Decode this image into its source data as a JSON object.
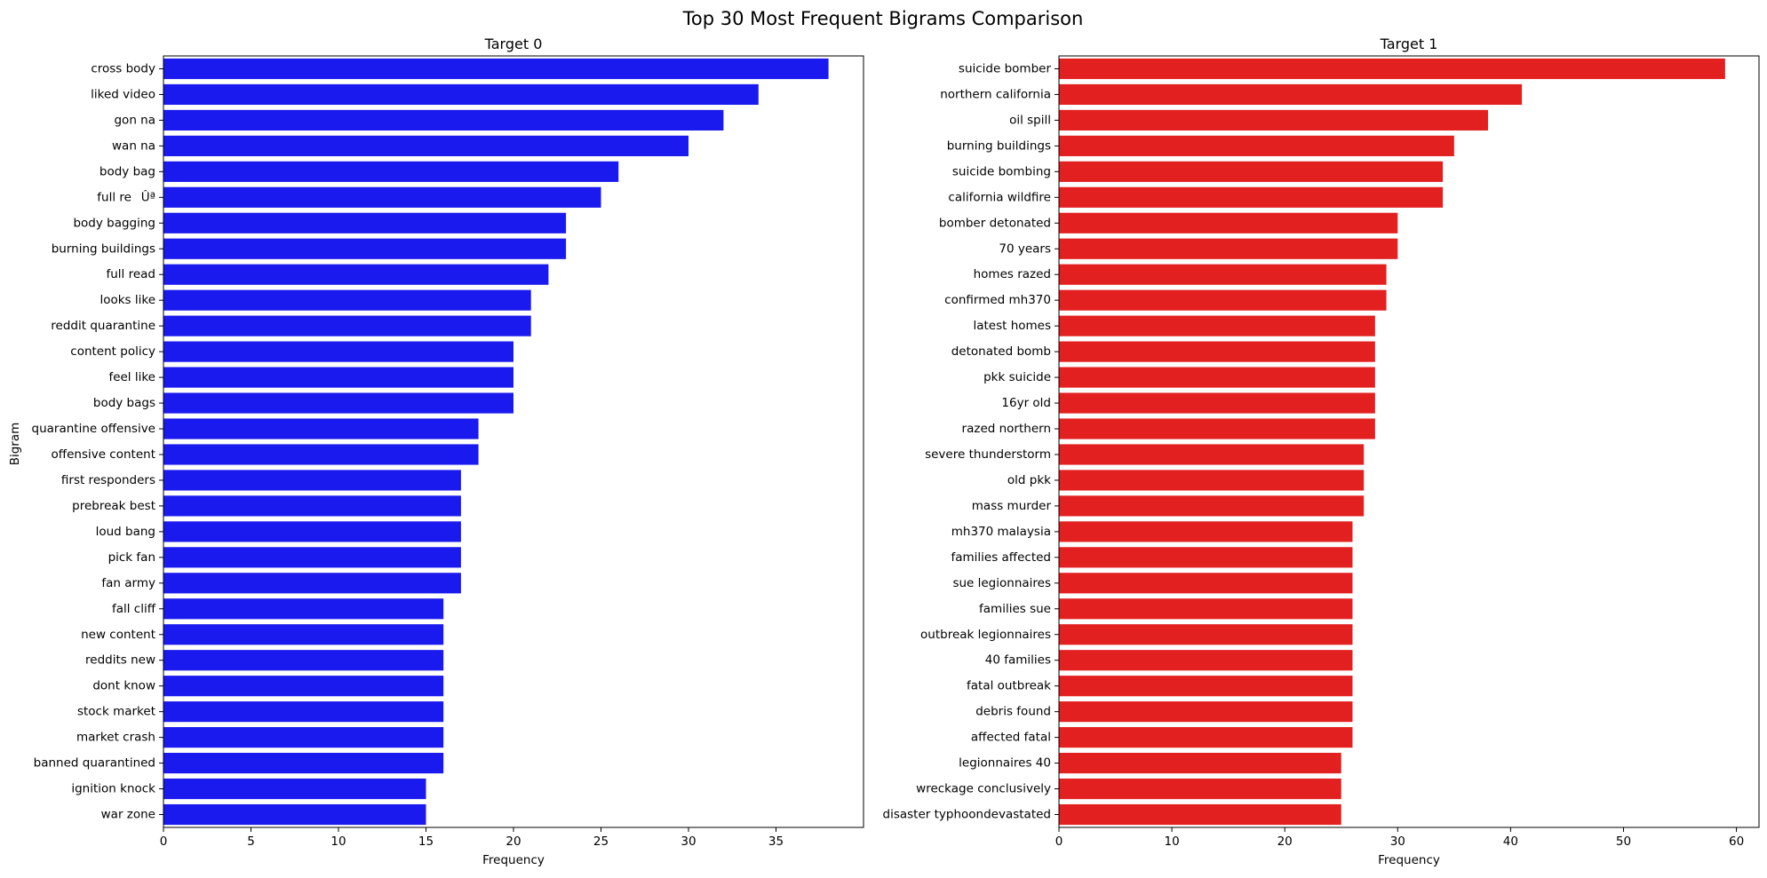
{
  "chart_data": {
    "title": "Top 30 Most Frequent Bigrams Comparison",
    "panels": [
      {
        "type": "bar",
        "orientation": "horizontal",
        "title": "Target 0",
        "xlabel": "Frequency",
        "ylabel": "Bigram",
        "color": "#1a1aee",
        "xlim": [
          0,
          40
        ],
        "xticks": [
          0,
          5,
          10,
          15,
          20,
          25,
          30,
          35
        ],
        "categories": [
          "cross body",
          "liked video",
          "gon na",
          "wan na",
          "body bag",
          "full reÛª",
          "body bagging",
          "burning buildings",
          "full read",
          "looks like",
          "reddit quarantine",
          "content policy",
          "feel like",
          "body bags",
          "quarantine offensive",
          "offensive content",
          "first responders",
          "prebreak best",
          "loud bang",
          "pick fan",
          "fan army",
          "fall cliff",
          "new content",
          "reddits new",
          "dont know",
          "stock market",
          "market crash",
          "banned quarantined",
          "ignition knock",
          "war zone"
        ],
        "values": [
          38,
          34,
          32,
          30,
          26,
          25,
          23,
          23,
          22,
          21,
          21,
          20,
          20,
          20,
          18,
          18,
          17,
          17,
          17,
          17,
          17,
          16,
          16,
          16,
          16,
          16,
          16,
          16,
          15,
          15
        ]
      },
      {
        "type": "bar",
        "orientation": "horizontal",
        "title": "Target 1",
        "xlabel": "Frequency",
        "ylabel": "",
        "color": "#e32020",
        "xlim": [
          0,
          62
        ],
        "xticks": [
          0,
          10,
          20,
          30,
          40,
          50,
          60
        ],
        "categories": [
          "suicide bomber",
          "northern california",
          "oil spill",
          "burning buildings",
          "suicide bombing",
          "california wildfire",
          "bomber detonated",
          "70 years",
          "homes razed",
          "confirmed mh370",
          "latest homes",
          "detonated bomb",
          "pkk suicide",
          "16yr old",
          "razed northern",
          "severe thunderstorm",
          "old pkk",
          "mass murder",
          "mh370 malaysia",
          "families affected",
          "sue legionnaires",
          "families sue",
          "outbreak legionnaires",
          "40 families",
          "fatal outbreak",
          "debris found",
          "affected fatal",
          "legionnaires 40",
          "wreckage conclusively",
          "disaster typhoondevastated"
        ],
        "values": [
          59,
          41,
          38,
          35,
          34,
          34,
          30,
          30,
          29,
          29,
          28,
          28,
          28,
          28,
          28,
          27,
          27,
          27,
          26,
          26,
          26,
          26,
          26,
          26,
          26,
          26,
          26,
          25,
          25,
          25
        ]
      }
    ]
  }
}
